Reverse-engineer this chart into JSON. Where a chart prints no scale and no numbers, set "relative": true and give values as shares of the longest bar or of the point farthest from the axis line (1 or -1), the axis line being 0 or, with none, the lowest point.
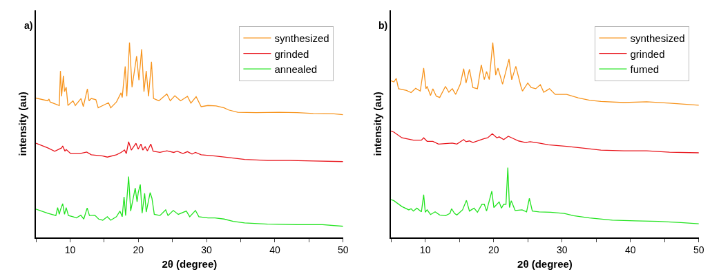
{
  "chart_data": [
    {
      "type": "line",
      "title": "a)",
      "xlabel": "2θ (degree)",
      "ylabel": "intensity (au)",
      "relative": true,
      "xlim": [
        5,
        50
      ],
      "xticks": [
        {
          "value": 5,
          "label": null
        },
        10,
        {
          "value": 15,
          "label": null
        },
        20,
        {
          "value": 25,
          "label": null
        },
        30,
        {
          "value": 35,
          "label": null
        },
        40,
        {
          "value": 45,
          "label": null
        },
        50
      ],
      "legend": "top right",
      "marker": "none",
      "line_style": "solid",
      "series": [
        {
          "name": "synthesized",
          "color": "#f7941d",
          "x": [
            5.0,
            6.74,
            6.91,
            7.08,
            8.42,
            8.59,
            8.76,
            9.02,
            9.19,
            9.43,
            9.69,
            10.43,
            10.77,
            11.61,
            11.94,
            12.54,
            12.78,
            13.11,
            13.78,
            14.12,
            15.63,
            15.96,
            16.8,
            17.47,
            17.64,
            18.08,
            18.31,
            18.71,
            19.08,
            19.75,
            20.09,
            20.49,
            20.83,
            21.16,
            21.5,
            21.93,
            22.23,
            23.01,
            24.18,
            24.68,
            25.35,
            26.19,
            27.2,
            27.7,
            28.47,
            29.21,
            30.21,
            31.39,
            32.56,
            33.23,
            34.57,
            37.26,
            40.61,
            43.29,
            45.64,
            48.66,
            50.0
          ],
          "values": [
            0.715,
            0.701,
            0.71,
            0.695,
            0.677,
            0.854,
            0.724,
            0.83,
            0.748,
            0.771,
            0.677,
            0.701,
            0.677,
            0.713,
            0.671,
            0.762,
            0.701,
            0.713,
            0.707,
            0.665,
            0.691,
            0.665,
            0.695,
            0.742,
            0.718,
            0.877,
            0.724,
            1.0,
            0.771,
            0.93,
            0.807,
            0.966,
            0.748,
            0.854,
            0.724,
            0.901,
            0.713,
            0.701,
            0.736,
            0.701,
            0.727,
            0.701,
            0.724,
            0.689,
            0.722,
            0.671,
            0.677,
            0.675,
            0.665,
            0.654,
            0.642,
            0.64,
            0.642,
            0.64,
            0.636,
            0.634,
            0.63
          ]
        },
        {
          "name": "grinded",
          "color": "#e8141b",
          "x": [
            5.0,
            6.74,
            7.75,
            8.76,
            8.92,
            9.26,
            9.43,
            10.1,
            11.44,
            12.44,
            13.11,
            14.79,
            15.46,
            16.8,
            17.47,
            17.98,
            18.24,
            18.58,
            18.98,
            19.66,
            19.99,
            20.39,
            20.66,
            21.0,
            21.33,
            21.83,
            22.17,
            23.17,
            24.18,
            25.19,
            25.69,
            26.53,
            27.2,
            27.87,
            28.37,
            29.21,
            31.22,
            33.23,
            35.58,
            38.93,
            42.29,
            45.64,
            50.0
          ],
          "values": [
            0.483,
            0.459,
            0.442,
            0.459,
            0.469,
            0.442,
            0.451,
            0.43,
            0.43,
            0.438,
            0.424,
            0.418,
            0.412,
            0.424,
            0.436,
            0.448,
            0.43,
            0.491,
            0.448,
            0.483,
            0.453,
            0.479,
            0.448,
            0.465,
            0.444,
            0.479,
            0.442,
            0.436,
            0.444,
            0.436,
            0.442,
            0.43,
            0.44,
            0.428,
            0.436,
            0.424,
            0.418,
            0.41,
            0.4,
            0.395,
            0.395,
            0.392,
            0.389
          ]
        },
        {
          "name": "annealed",
          "color": "#22e31f",
          "x": [
            5.0,
            6.74,
            7.92,
            8.18,
            8.42,
            8.59,
            8.92,
            9.19,
            9.43,
            9.76,
            10.43,
            10.93,
            11.57,
            12.01,
            12.51,
            12.84,
            13.62,
            14.19,
            14.79,
            15.46,
            15.96,
            16.8,
            17.31,
            17.64,
            17.91,
            18.14,
            18.58,
            18.88,
            19.55,
            19.82,
            19.99,
            20.29,
            20.56,
            20.93,
            21.16,
            21.73,
            22.0,
            22.34,
            23.17,
            24.01,
            24.35,
            25.12,
            25.86,
            27.03,
            27.53,
            28.37,
            28.87,
            30.21,
            31.22,
            32.56,
            33.9,
            35.58,
            38.93,
            43.29,
            46.98,
            50.0
          ],
          "values": [
            0.145,
            0.124,
            0.112,
            0.153,
            0.118,
            0.141,
            0.173,
            0.118,
            0.153,
            0.112,
            0.106,
            0.1,
            0.114,
            0.094,
            0.151,
            0.112,
            0.114,
            0.094,
            0.088,
            0.106,
            0.088,
            0.106,
            0.135,
            0.106,
            0.208,
            0.112,
            0.312,
            0.135,
            0.253,
            0.183,
            0.23,
            0.271,
            0.124,
            0.226,
            0.13,
            0.23,
            0.2,
            0.118,
            0.112,
            0.141,
            0.112,
            0.138,
            0.118,
            0.135,
            0.106,
            0.138,
            0.106,
            0.1,
            0.1,
            0.094,
            0.082,
            0.074,
            0.068,
            0.065,
            0.065,
            0.057
          ]
        }
      ]
    },
    {
      "type": "line",
      "title": "b)",
      "xlabel": "2θ (degree)",
      "ylabel": "intensity (au)",
      "relative": true,
      "xlim": [
        5,
        50
      ],
      "xticks": [
        {
          "value": 5,
          "label": null
        },
        10,
        {
          "value": 15,
          "label": null
        },
        20,
        {
          "value": 25,
          "label": null
        },
        30,
        {
          "value": 35,
          "label": null
        },
        40,
        {
          "value": 45,
          "label": null
        },
        50
      ],
      "legend": "top right",
      "marker": "none",
      "line_style": "solid",
      "series": [
        {
          "name": "synthesized",
          "color": "#f7941d",
          "x": [
            5.0,
            5.43,
            5.77,
            6.1,
            7.27,
            7.94,
            8.61,
            9.28,
            9.78,
            10.11,
            10.28,
            10.78,
            11.12,
            11.62,
            12.12,
            12.96,
            13.46,
            13.96,
            14.46,
            15.13,
            15.63,
            15.97,
            16.47,
            16.97,
            17.64,
            18.2,
            18.64,
            18.97,
            19.37,
            19.88,
            20.31,
            20.64,
            21.31,
            22.25,
            22.65,
            23.25,
            23.99,
            24.22,
            24.99,
            25.49,
            26.16,
            26.83,
            27.33,
            28.17,
            29.0,
            30.67,
            32.35,
            34.02,
            35.69,
            39.03,
            42.37,
            45.72,
            50.0
          ],
          "values": [
            0.804,
            0.798,
            0.816,
            0.763,
            0.754,
            0.743,
            0.765,
            0.751,
            0.869,
            0.763,
            0.775,
            0.728,
            0.763,
            0.725,
            0.718,
            0.775,
            0.745,
            0.763,
            0.734,
            0.786,
            0.866,
            0.792,
            0.863,
            0.769,
            0.763,
            0.886,
            0.81,
            0.851,
            0.81,
            1.0,
            0.833,
            0.869,
            0.786,
            0.915,
            0.809,
            0.878,
            0.775,
            0.751,
            0.792,
            0.769,
            0.763,
            0.784,
            0.745,
            0.763,
            0.734,
            0.734,
            0.716,
            0.704,
            0.698,
            0.692,
            0.696,
            0.689,
            0.678
          ]
        },
        {
          "name": "grinded",
          "color": "#e8141b",
          "x": [
            5.0,
            5.43,
            6.6,
            8.28,
            9.45,
            9.78,
            10.28,
            11.12,
            11.95,
            13.96,
            14.63,
            15.63,
            15.97,
            16.47,
            16.97,
            17.97,
            18.64,
            19.14,
            19.81,
            20.48,
            20.81,
            21.48,
            22.15,
            22.65,
            23.65,
            24.66,
            25.33,
            26.66,
            28.0,
            30.67,
            33.02,
            35.69,
            39.03,
            42.37,
            45.72,
            50.0
          ],
          "values": [
            0.546,
            0.54,
            0.511,
            0.499,
            0.499,
            0.511,
            0.493,
            0.493,
            0.479,
            0.484,
            0.479,
            0.502,
            0.491,
            0.495,
            0.487,
            0.499,
            0.507,
            0.511,
            0.532,
            0.511,
            0.516,
            0.502,
            0.519,
            0.511,
            0.495,
            0.487,
            0.491,
            0.484,
            0.475,
            0.467,
            0.458,
            0.448,
            0.444,
            0.444,
            0.437,
            0.434
          ]
        },
        {
          "name": "fumed",
          "color": "#22e31f",
          "x": [
            5.0,
            5.43,
            6.6,
            7.61,
            7.94,
            8.28,
            8.78,
            9.45,
            9.78,
            10.01,
            10.28,
            10.78,
            11.45,
            12.12,
            12.96,
            13.62,
            13.86,
            14.29,
            14.63,
            15.46,
            16.03,
            16.47,
            17.14,
            17.64,
            18.3,
            18.64,
            18.97,
            19.74,
            20.04,
            20.81,
            21.15,
            21.48,
            21.81,
            22.08,
            22.32,
            22.58,
            23.15,
            24.16,
            24.82,
            25.23,
            25.66,
            26.66,
            28.33,
            30.34,
            31.68,
            34.02,
            37.36,
            40.7,
            44.05,
            47.39,
            50.0
          ],
          "values": [
            0.194,
            0.188,
            0.158,
            0.141,
            0.147,
            0.135,
            0.15,
            0.131,
            0.219,
            0.129,
            0.141,
            0.117,
            0.131,
            0.115,
            0.111,
            0.123,
            0.147,
            0.123,
            0.115,
            0.141,
            0.19,
            0.135,
            0.15,
            0.129,
            0.17,
            0.17,
            0.135,
            0.237,
            0.153,
            0.182,
            0.15,
            0.17,
            0.17,
            0.358,
            0.153,
            0.188,
            0.138,
            0.141,
            0.131,
            0.2,
            0.135,
            0.131,
            0.129,
            0.123,
            0.111,
            0.1,
            0.088,
            0.085,
            0.082,
            0.076,
            0.07
          ]
        }
      ]
    }
  ]
}
